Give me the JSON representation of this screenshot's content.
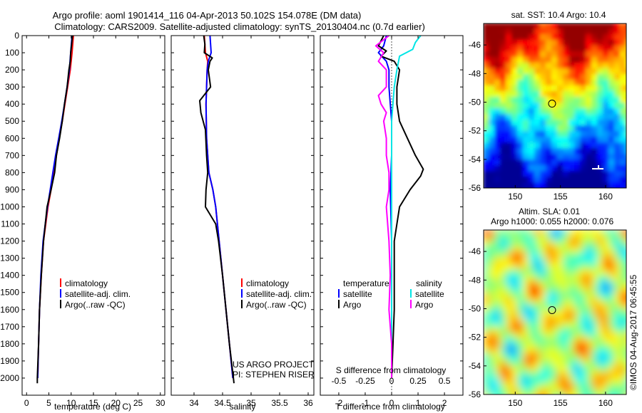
{
  "header": {
    "line1": "Argo profile: aoml 1901414_116 04-Apr-2013 50.102S 154.078E (DM data)",
    "line2": "Climatology: CARS2009. Satellite-adjusted climatology: synTS_20130404.nc (0.7d earlier)"
  },
  "colors": {
    "climatology": "#ff0000",
    "satellite": "#0000ff",
    "argo": "#000000",
    "sat_salinity": "#00e5e5",
    "argo_salinity": "#ff00ff"
  },
  "chart_data": [
    {
      "type": "line",
      "name": "temperature-profile",
      "xlabel": "temperature (deg C)",
      "ylabel": "",
      "xlim": [
        -1,
        31
      ],
      "ylim": [
        2100,
        0
      ],
      "xticks": [
        0,
        5,
        10,
        15,
        20,
        25,
        30
      ],
      "yticks": [
        0,
        100,
        200,
        300,
        400,
        500,
        600,
        700,
        800,
        900,
        1000,
        1100,
        1200,
        1300,
        1400,
        1500,
        1600,
        1700,
        1800,
        1900,
        2000
      ],
      "legend": {
        "placement": "lower-center",
        "entries": [
          "climatology",
          "satellite-adj. clim.",
          "Argo(..raw -QC)"
        ]
      },
      "series": [
        {
          "name": "climatology",
          "color": "#ff0000",
          "depth": [
            0,
            100,
            200,
            300,
            400,
            500,
            600,
            700,
            800,
            900,
            1000,
            1200,
            1400,
            1600,
            1800,
            2000
          ],
          "values": [
            10.5,
            10.2,
            9.8,
            9.2,
            8.6,
            8.0,
            7.3,
            6.7,
            6.1,
            5.5,
            4.8,
            3.8,
            3.3,
            2.9,
            2.7,
            2.5
          ]
        },
        {
          "name": "satellite-adj. clim.",
          "color": "#0000ff",
          "depth": [
            0,
            100,
            200,
            300,
            400,
            500,
            600,
            700,
            800,
            900,
            1000,
            1200,
            1400,
            1600,
            1800,
            2000
          ],
          "values": [
            10.2,
            9.9,
            9.6,
            9.1,
            8.5,
            7.9,
            7.2,
            6.5,
            5.9,
            5.3,
            4.7,
            3.7,
            3.2,
            2.9,
            2.7,
            2.5
          ]
        },
        {
          "name": "Argo(..raw -QC)",
          "color": "#000000",
          "depth": [
            0,
            50,
            100,
            150,
            200,
            300,
            400,
            500,
            600,
            700,
            800,
            900,
            1000,
            1100,
            1200,
            1400,
            1600,
            1800,
            2000,
            2030
          ],
          "values": [
            10.3,
            10.1,
            9.9,
            9.8,
            9.5,
            9.1,
            8.5,
            8.0,
            7.4,
            6.7,
            6.3,
            5.5,
            4.6,
            4.2,
            3.8,
            3.3,
            2.9,
            2.7,
            2.4,
            2.4
          ]
        }
      ],
      "annotations": []
    },
    {
      "type": "line",
      "name": "salinity-profile",
      "xlabel": "salinity",
      "ylabel": "",
      "xlim": [
        33.6,
        36.1
      ],
      "ylim": [
        2100,
        0
      ],
      "xticks": [
        34,
        34.5,
        35,
        35.5,
        36
      ],
      "legend": {
        "placement": "lower-right",
        "entries": [
          "climatology",
          "satellite-adj. clim.",
          "Argo(..raw -QC)"
        ]
      },
      "series": [
        {
          "name": "climatology",
          "color": "#ff0000",
          "depth": [
            0,
            100,
            150,
            200,
            300,
            400,
            600,
            800,
            900,
            1000,
            1200,
            1400,
            1600,
            1800,
            2000
          ],
          "values": [
            34.18,
            34.2,
            34.24,
            34.23,
            34.22,
            34.21,
            34.22,
            34.26,
            34.33,
            34.38,
            34.44,
            34.5,
            34.56,
            34.62,
            34.68
          ]
        },
        {
          "name": "satellite-adj. clim.",
          "color": "#0000ff",
          "depth": [
            0,
            100,
            150,
            200,
            300,
            400,
            600,
            800,
            900,
            1000,
            1200,
            1400,
            1600,
            1800,
            2000
          ],
          "values": [
            34.28,
            34.3,
            34.25,
            34.23,
            34.22,
            34.21,
            34.22,
            34.26,
            34.33,
            34.38,
            34.44,
            34.5,
            34.56,
            34.62,
            34.68
          ]
        },
        {
          "name": "Argo(..raw -QC)",
          "color": "#000000",
          "depth": [
            0,
            50,
            100,
            130,
            150,
            200,
            300,
            380,
            450,
            550,
            700,
            800,
            900,
            1000,
            1100,
            1200,
            1400,
            1600,
            1800,
            2000,
            2030
          ],
          "values": [
            34.17,
            34.19,
            34.18,
            34.32,
            34.28,
            34.25,
            34.29,
            34.1,
            34.12,
            34.2,
            34.22,
            34.24,
            34.21,
            34.2,
            34.38,
            34.43,
            34.5,
            34.56,
            34.62,
            34.69,
            34.7
          ]
        }
      ],
      "annotations": [
        "US ARGO PROJECT",
        "PI: STEPHEN RISER"
      ]
    },
    {
      "type": "line",
      "name": "difference-profile",
      "xlabel": "T difference from climatology",
      "xlabel_top": "S difference from climatology",
      "ylabel": "",
      "xlim": [
        -2.7,
        2.7
      ],
      "ylim": [
        2100,
        0
      ],
      "xticks": [
        -2,
        -1,
        0,
        1,
        2
      ],
      "top_ticks": [
        "-0.5",
        "-0.25",
        "0",
        "0.25",
        "0.5"
      ],
      "top_tick_values_T": [
        -2,
        -1,
        0,
        1,
        2
      ],
      "legend": {
        "placement": "lower-center",
        "groups": [
          "temperature",
          "salinity"
        ],
        "entries": [
          "satellite",
          "Argo",
          "satellite",
          "Argo"
        ]
      },
      "series": [
        {
          "name": "temperature satellite",
          "color": "#0000ff",
          "depth": [
            0,
            60,
            100,
            150,
            200,
            300,
            500,
            700,
            900,
            1200,
            1500,
            1800,
            2000
          ],
          "values": [
            -0.2,
            -0.3,
            -0.5,
            -0.2,
            -0.1,
            -0.1,
            0.0,
            0.0,
            -0.05,
            0.0,
            0.0,
            0.0,
            0.0
          ]
        },
        {
          "name": "temperature Argo",
          "color": "#000000",
          "depth": [
            0,
            60,
            90,
            120,
            150,
            200,
            300,
            400,
            500,
            600,
            700,
            780,
            820,
            900,
            1000,
            1200,
            1400,
            1600,
            1800,
            2000
          ],
          "values": [
            -0.3,
            -0.5,
            -0.2,
            -0.4,
            0.1,
            0.3,
            0.2,
            0.2,
            0.3,
            0.6,
            0.9,
            1.2,
            1.1,
            0.7,
            0.3,
            0.1,
            0.1,
            0.1,
            0.05,
            0.0
          ]
        },
        {
          "name": "salinity satellite",
          "color": "#00e5e5",
          "depth": [
            0,
            40,
            80,
            120,
            200,
            300,
            500,
            700,
            900,
            1200,
            1500,
            1800,
            2000
          ],
          "values": [
            1.1,
            0.9,
            0.8,
            0.3,
            0.2,
            0.1,
            0.0,
            0.0,
            0.0,
            0.0,
            0.0,
            0.0,
            0.0
          ]
        },
        {
          "name": "salinity Argo",
          "color": "#ff00ff",
          "depth": [
            0,
            60,
            100,
            150,
            200,
            300,
            350,
            400,
            450,
            500,
            600,
            700,
            800,
            900,
            1000,
            1200,
            1400,
            1600,
            1800,
            2000
          ],
          "values": [
            -0.1,
            -0.6,
            -0.3,
            -0.5,
            -0.2,
            -0.2,
            -0.5,
            -0.4,
            -0.2,
            -0.3,
            -0.2,
            -0.2,
            -0.1,
            -0.1,
            -0.2,
            -0.1,
            -0.05,
            -0.1,
            0.0,
            0.0
          ]
        }
      ]
    },
    {
      "type": "heatmap",
      "name": "sst-map",
      "title": "sat. SST: 10.4  Argo: 10.4",
      "xlim": [
        146.5,
        162.3
      ],
      "ylim": [
        -56,
        -44.5
      ],
      "xticks": [
        150,
        155,
        160
      ],
      "yticks": [
        -46,
        -48,
        -50,
        -52,
        -54,
        -56
      ],
      "profile_location": [
        154.078,
        -50.102
      ]
    },
    {
      "type": "heatmap",
      "name": "sla-map",
      "title_line1": "Altim. SLA: 0.01",
      "title_line2": "Argo h1000: 0.055 h2000: 0.076",
      "xlim": [
        146.5,
        162.3
      ],
      "ylim": [
        -56,
        -44.5
      ],
      "xticks": [
        150,
        155,
        160
      ],
      "yticks": [
        -46,
        -48,
        -50,
        -52,
        -54,
        -56
      ],
      "profile_location": [
        154.078,
        -50.102
      ]
    }
  ],
  "footer_stamp": "©IMOS 04-Aug-2017 06:45:55"
}
